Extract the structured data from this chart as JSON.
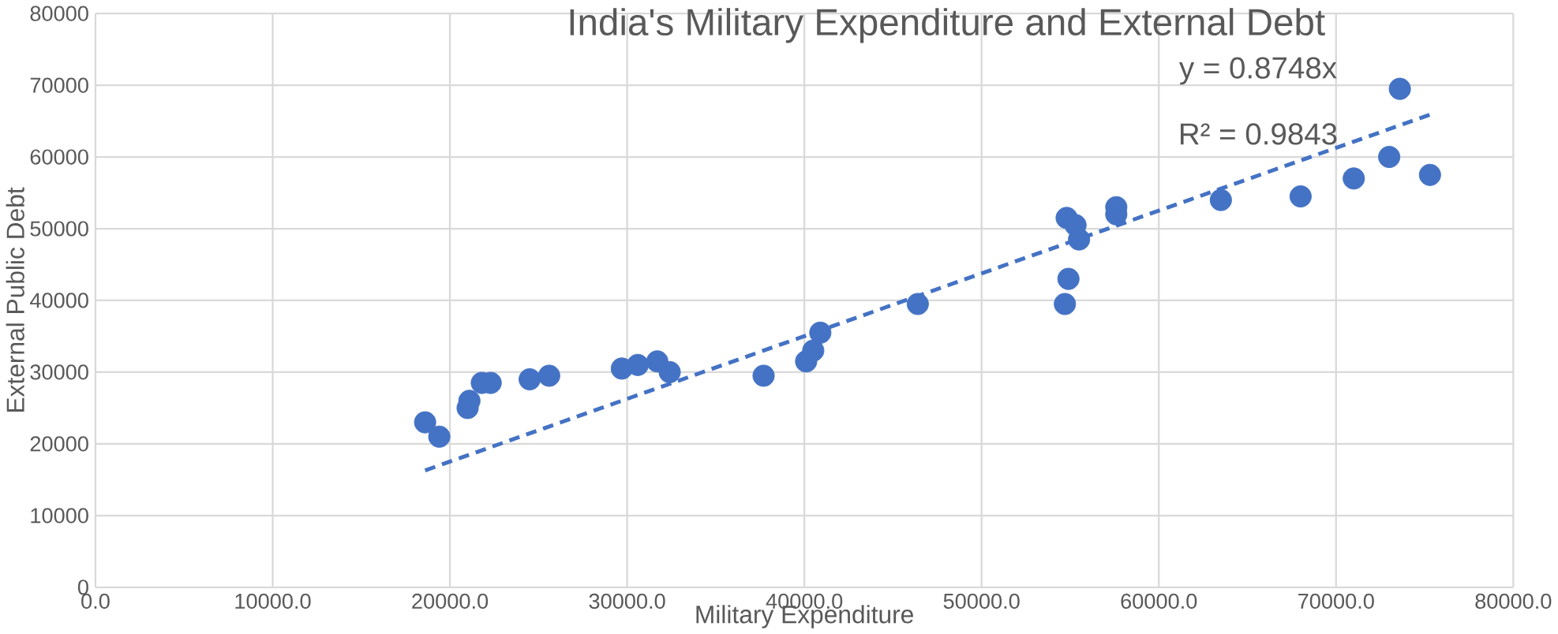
{
  "chart_data": {
    "type": "scatter",
    "title": "India's Military Expenditure and External Debt",
    "xlabel": "Military Expenditure",
    "ylabel": "External Public Debt",
    "annotations": [
      "y = 0.8748x",
      "R² = 0.9843"
    ],
    "series": [
      {
        "color": "#4472c4",
        "x": [
          18600,
          19400,
          21000,
          21100,
          21800,
          22300,
          24500,
          25600,
          29700,
          30600,
          31700,
          32400,
          37700,
          40100,
          40500,
          40900,
          46400,
          54700,
          54900,
          54800,
          55300,
          55500,
          57600,
          57600,
          63500,
          68000,
          71000,
          73000,
          73600,
          75300
        ],
        "values": [
          23000,
          21000,
          25000,
          26000,
          28500,
          28500,
          29000,
          29500,
          30500,
          31000,
          31500,
          30000,
          29500,
          31500,
          33000,
          35500,
          39500,
          39500,
          43000,
          51500,
          50500,
          48500,
          53000,
          52000,
          54000,
          54500,
          57000,
          60000,
          69500,
          57500
        ]
      },
      {
        "type": "line",
        "color": "#4472c4",
        "line_style": "dashed",
        "x": [
          18600,
          75300
        ],
        "values": [
          16300,
          65900
        ]
      }
    ],
    "xlim": [
      0,
      80000
    ],
    "ylim": [
      0,
      80000
    ],
    "xticks": [
      {
        "value": 0,
        "label": "0.0"
      },
      {
        "value": 10000,
        "label": "10000.0"
      },
      {
        "value": 20000,
        "label": "20000.0"
      },
      {
        "value": 30000,
        "label": "30000.0"
      },
      {
        "value": 40000,
        "label": "40000.0"
      },
      {
        "value": 50000,
        "label": "50000.0"
      },
      {
        "value": 60000,
        "label": "60000.0"
      },
      {
        "value": 70000,
        "label": "70000.0"
      },
      {
        "value": 80000,
        "label": "80000.0"
      }
    ],
    "yticks": [
      0,
      10000,
      20000,
      30000,
      40000,
      50000,
      60000,
      70000,
      80000
    ],
    "grid": true
  }
}
